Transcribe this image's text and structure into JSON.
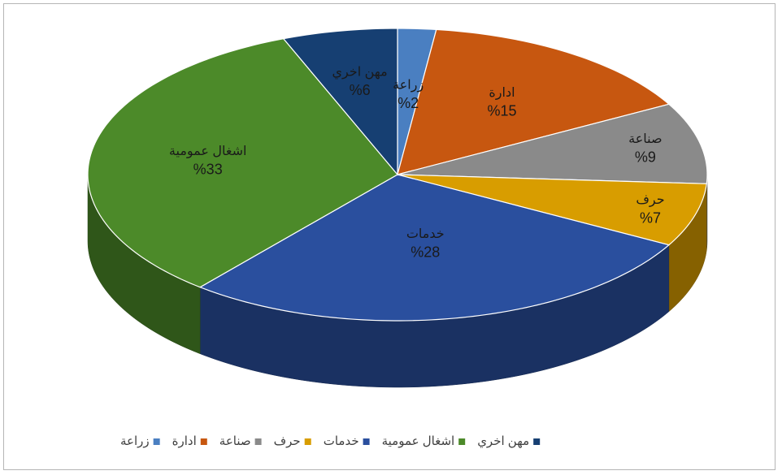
{
  "chart_data": {
    "type": "pie3d",
    "categories": [
      "زراعة",
      "ادارة",
      "صناعة",
      "حرف",
      "خدمات",
      "اشغال عمومية",
      "مهن اخري"
    ],
    "values": [
      2,
      15,
      9,
      7,
      28,
      33,
      6
    ],
    "value_labels": [
      "%2",
      "%15",
      "%9",
      "%7",
      "%28",
      "%33",
      "%6"
    ],
    "colors": [
      "#4a7fc1",
      "#c75710",
      "#8a8a8a",
      "#d89d00",
      "#2a4f9e",
      "#4c8a29",
      "#163f72"
    ],
    "legend": "bottom"
  }
}
